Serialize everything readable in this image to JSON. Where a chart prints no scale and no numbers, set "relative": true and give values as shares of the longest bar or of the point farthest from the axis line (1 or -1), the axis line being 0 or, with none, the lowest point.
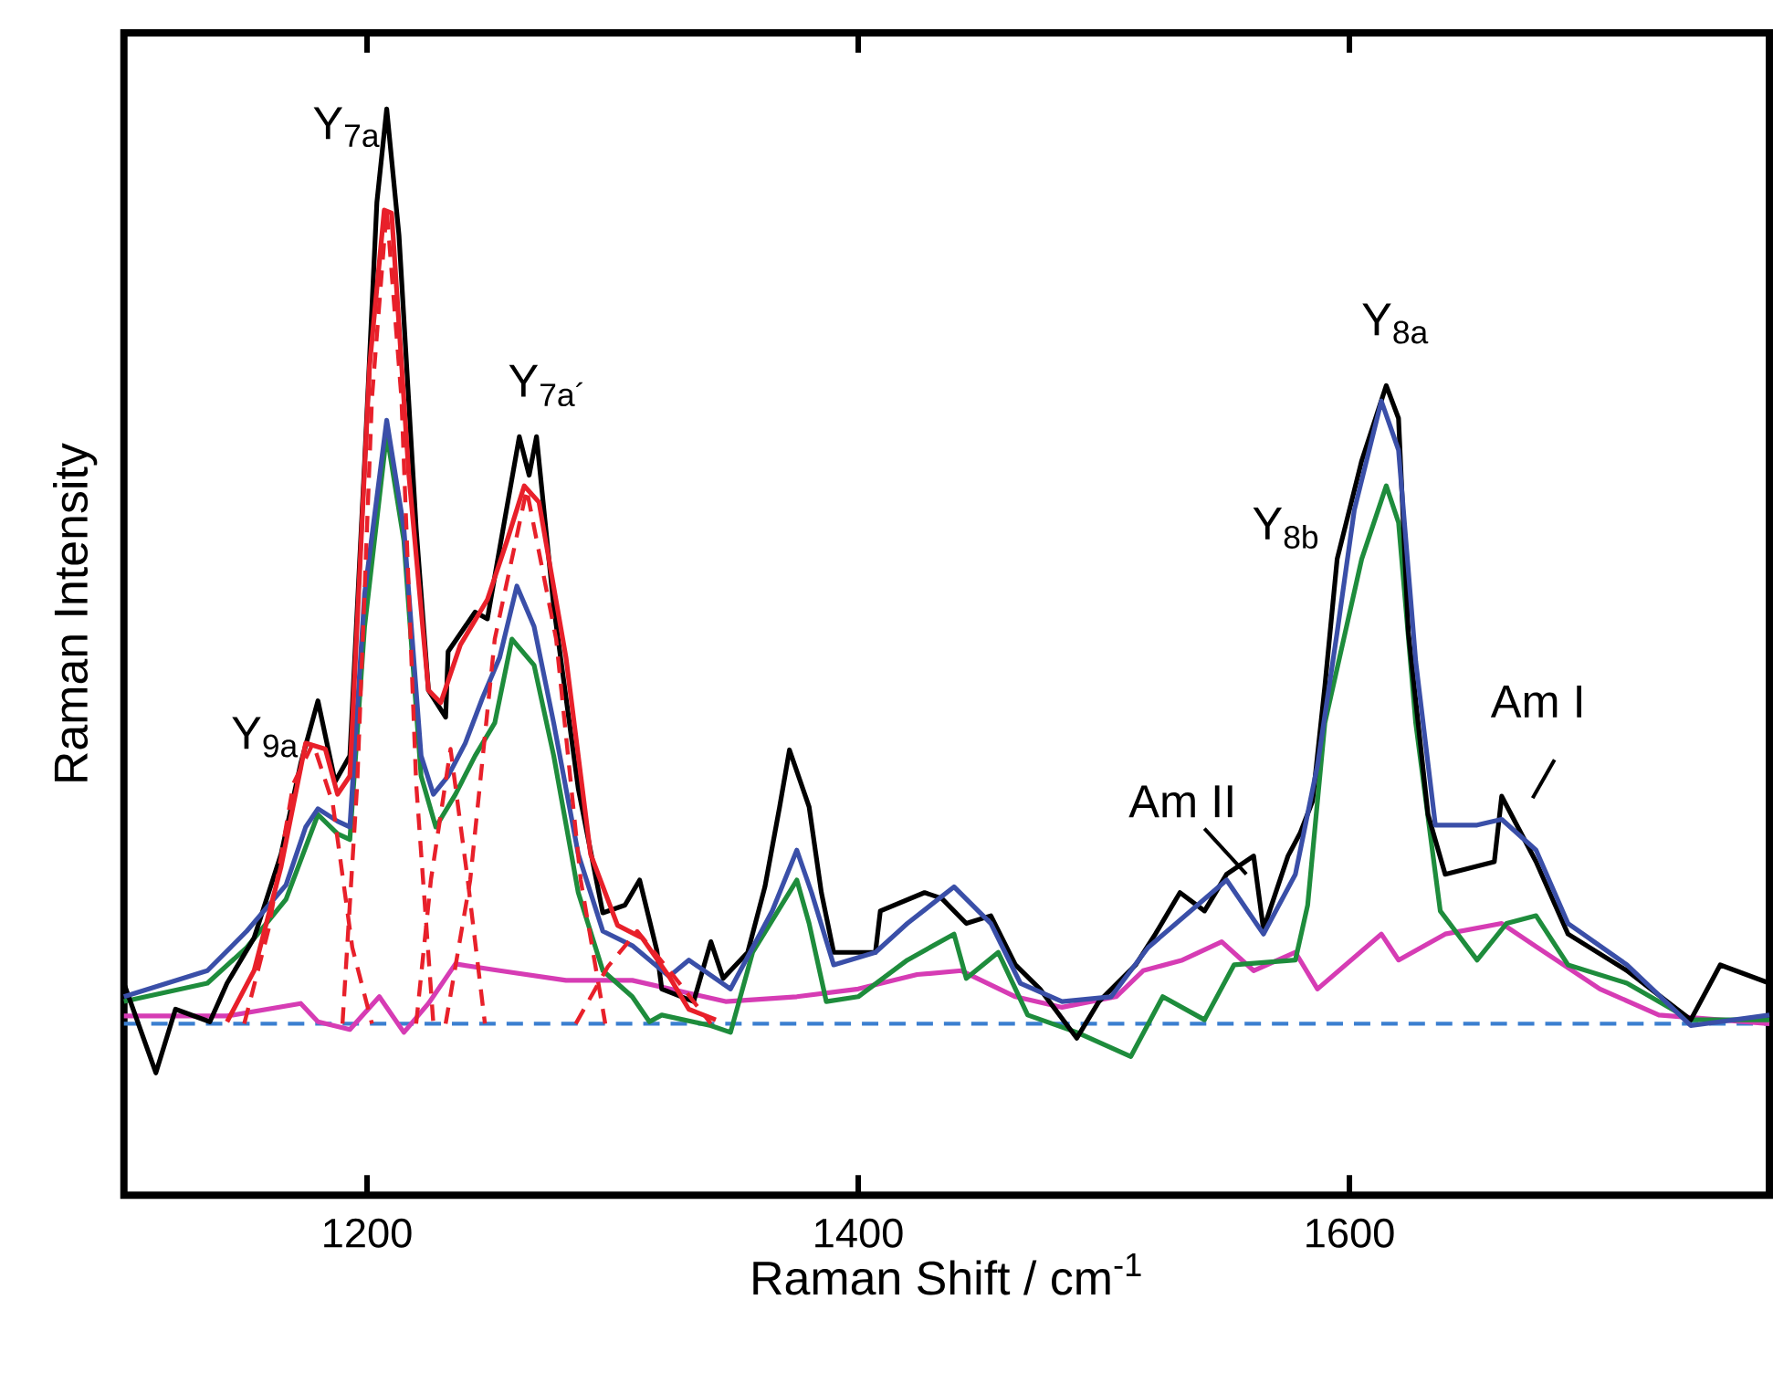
{
  "chart_data": {
    "type": "line",
    "relative": true,
    "xlabel": "Raman Shift / cm$^{-1}$",
    "ylabel": "Raman Intensity",
    "xlim": [
      1101,
      1771
    ],
    "xticks": [
      1200,
      1400,
      1600
    ],
    "tick_labels": "x",
    "annotations": [
      {
        "text": "Y$_{9a}$",
        "x": 1180,
        "y": 0.386
      },
      {
        "text": "Y$_{7a}$",
        "x": 1208,
        "y": 1
      },
      {
        "text": "Y$_{7a´}$",
        "x": 1269,
        "y": 0.66
      },
      {
        "text": "Y$_{8b}$",
        "x": 1595,
        "y": 0.533
      },
      {
        "text": "Y$_{8a}$",
        "x": 1615,
        "y": 0.713
      },
      {
        "text": "Am II",
        "x": 1561,
        "y": 0.225
      },
      {
        "text": "Am I",
        "x": 1662,
        "y": 0.287
      }
    ],
    "series": [
      {
        "color": "#3b7fd0",
        "line_style": "dashed",
        "x": [
          1101,
          1771
        ],
        "values": [
          0.051,
          0.051
        ]
      },
      {
        "color": "#d63cb4",
        "x": [
          1101,
          1143,
          1173,
          1180,
          1193,
          1205,
          1215,
          1225,
          1236,
          1254,
          1281,
          1308,
          1346,
          1375,
          1400,
          1424,
          1442,
          1464,
          1483,
          1505,
          1516,
          1532,
          1548,
          1561,
          1578,
          1587,
          1613,
          1620,
          1639,
          1662,
          1676,
          1702,
          1726,
          1771
        ],
        "values": [
          0.059,
          0.059,
          0.072,
          0.053,
          0.045,
          0.079,
          0.042,
          0.072,
          0.113,
          0.106,
          0.096,
          0.096,
          0.074,
          0.079,
          0.087,
          0.102,
          0.106,
          0.079,
          0.068,
          0.079,
          0.106,
          0.117,
          0.136,
          0.106,
          0.125,
          0.087,
          0.144,
          0.117,
          0.144,
          0.155,
          0.131,
          0.087,
          0.06,
          0.051
        ]
      },
      {
        "color": "#1e8c3c",
        "x": [
          1101,
          1135,
          1151,
          1167,
          1180,
          1188,
          1193,
          1199,
          1208,
          1215,
          1222,
          1228,
          1236,
          1244,
          1252,
          1259,
          1268,
          1276,
          1286,
          1296,
          1308,
          1315,
          1320,
          1340,
          1348,
          1357,
          1375,
          1380,
          1387,
          1400,
          1420,
          1439,
          1444,
          1457,
          1469,
          1489,
          1511,
          1524,
          1541,
          1553,
          1578,
          1583,
          1590,
          1605,
          1615,
          1620,
          1627,
          1637,
          1652,
          1664,
          1676,
          1689,
          1713,
          1739,
          1771
        ],
        "values": [
          0.074,
          0.093,
          0.13,
          0.18,
          0.268,
          0.248,
          0.242,
          0.463,
          0.663,
          0.552,
          0.308,
          0.255,
          0.289,
          0.329,
          0.363,
          0.45,
          0.423,
          0.329,
          0.187,
          0.106,
          0.079,
          0.053,
          0.06,
          0.049,
          0.042,
          0.125,
          0.2,
          0.155,
          0.074,
          0.079,
          0.117,
          0.144,
          0.098,
          0.125,
          0.06,
          0.042,
          0.017,
          0.079,
          0.055,
          0.112,
          0.117,
          0.174,
          0.363,
          0.533,
          0.609,
          0.571,
          0.363,
          0.168,
          0.117,
          0.155,
          0.163,
          0.112,
          0.093,
          0.055,
          0.055
        ]
      },
      {
        "color": "#000000",
        "x": [
          1101,
          1114,
          1122,
          1136,
          1143,
          1154,
          1165,
          1173,
          1180,
          1187,
          1193,
          1199,
          1204,
          1208,
          1213,
          1220,
          1225,
          1232,
          1233,
          1244,
          1249,
          1254,
          1262,
          1266,
          1269,
          1276,
          1286,
          1296,
          1305,
          1311,
          1318,
          1320,
          1333,
          1340,
          1345,
          1355,
          1362,
          1368,
          1372,
          1380,
          1385,
          1390,
          1407,
          1409,
          1427,
          1434,
          1444,
          1454,
          1464,
          1474,
          1489,
          1498,
          1513,
          1521,
          1531,
          1541,
          1550,
          1561,
          1565,
          1575,
          1580,
          1585,
          1590,
          1595,
          1605,
          1615,
          1620,
          1624,
          1632,
          1639,
          1659,
          1662,
          1676,
          1689,
          1713,
          1739,
          1751,
          1771
        ],
        "values": [
          0.093,
          0,
          0.066,
          0.053,
          0.093,
          0.14,
          0.227,
          0.321,
          0.386,
          0.302,
          0.329,
          0.633,
          0.903,
          1,
          0.869,
          0.565,
          0.397,
          0.369,
          0.437,
          0.478,
          0.471,
          0.544,
          0.66,
          0.62,
          0.66,
          0.484,
          0.295,
          0.166,
          0.174,
          0.2,
          0.127,
          0.087,
          0.074,
          0.136,
          0.098,
          0.125,
          0.193,
          0.276,
          0.335,
          0.276,
          0.187,
          0.125,
          0.125,
          0.168,
          0.187,
          0.181,
          0.155,
          0.163,
          0.112,
          0.087,
          0.036,
          0.074,
          0.112,
          0.144,
          0.187,
          0.168,
          0.206,
          0.225,
          0.149,
          0.225,
          0.249,
          0.282,
          0.401,
          0.533,
          0.635,
          0.713,
          0.679,
          0.457,
          0.268,
          0.206,
          0.219,
          0.287,
          0.219,
          0.144,
          0.106,
          0.055,
          0.112,
          0.093
        ]
      },
      {
        "color": "#3a4fa8",
        "x": [
          1101,
          1135,
          1151,
          1167,
          1175,
          1180,
          1188,
          1193,
          1199,
          1208,
          1215,
          1222,
          1227,
          1233,
          1240,
          1247,
          1254,
          1261,
          1268,
          1276,
          1286,
          1296,
          1308,
          1323,
          1331,
          1348,
          1365,
          1375,
          1381,
          1390,
          1407,
          1420,
          1439,
          1454,
          1466,
          1483,
          1503,
          1518,
          1550,
          1565,
          1578,
          1587,
          1595,
          1602,
          1613,
          1620,
          1627,
          1635,
          1652,
          1662,
          1676,
          1689,
          1713,
          1739,
          1771
        ],
        "values": [
          0.079,
          0.106,
          0.147,
          0.195,
          0.255,
          0.274,
          0.261,
          0.255,
          0.497,
          0.677,
          0.565,
          0.329,
          0.289,
          0.308,
          0.342,
          0.389,
          0.431,
          0.505,
          0.463,
          0.363,
          0.227,
          0.147,
          0.132,
          0.1,
          0.117,
          0.087,
          0.168,
          0.231,
          0.187,
          0.112,
          0.125,
          0.155,
          0.193,
          0.155,
          0.093,
          0.074,
          0.079,
          0.13,
          0.2,
          0.144,
          0.206,
          0.319,
          0.457,
          0.584,
          0.697,
          0.646,
          0.427,
          0.257,
          0.257,
          0.263,
          0.231,
          0.155,
          0.112,
          0.049,
          0.06
        ]
      },
      {
        "color": "#e8202a",
        "line_style": "dashed",
        "x": [
          1150,
          1160,
          1170,
          1178,
          1186,
          1194,
          1202
        ],
        "values": [
          0.051,
          0.15,
          0.3,
          0.342,
          0.28,
          0.13,
          0.051
        ]
      },
      {
        "color": "#e8202a",
        "line_style": "dashed",
        "x": [
          1190,
          1196,
          1202,
          1208,
          1214,
          1220,
          1227
        ],
        "values": [
          0.051,
          0.3,
          0.7,
          0.896,
          0.7,
          0.3,
          0.051
        ]
      },
      {
        "color": "#e8202a",
        "line_style": "dashed",
        "x": [
          1220,
          1226,
          1234,
          1241,
          1248
        ],
        "values": [
          0.051,
          0.2,
          0.336,
          0.2,
          0.051
        ]
      },
      {
        "color": "#e8202a",
        "line_style": "dashed",
        "x": [
          1232,
          1242,
          1252,
          1265,
          1277,
          1287,
          1297
        ],
        "values": [
          0.051,
          0.2,
          0.45,
          0.605,
          0.45,
          0.2,
          0.051
        ]
      },
      {
        "color": "#e8202a",
        "line_style": "dashed",
        "x": [
          1285,
          1298,
          1310,
          1325,
          1340
        ],
        "values": [
          0.051,
          0.11,
          0.147,
          0.1,
          0.051
        ]
      },
      {
        "color": "#e8202a",
        "x": [
          1143,
          1154,
          1165,
          1175,
          1183,
          1188,
          1193,
          1201,
          1207,
          1210,
          1217,
          1225,
          1230,
          1238,
          1249,
          1257,
          1264,
          1270,
          1281,
          1291,
          1302,
          1312,
          1323,
          1331,
          1342
        ],
        "values": [
          0.053,
          0.106,
          0.214,
          0.342,
          0.336,
          0.289,
          0.308,
          0.733,
          0.895,
          0.892,
          0.621,
          0.397,
          0.384,
          0.444,
          0.491,
          0.552,
          0.609,
          0.592,
          0.431,
          0.227,
          0.153,
          0.14,
          0.1,
          0.066,
          0.055
        ]
      }
    ]
  }
}
